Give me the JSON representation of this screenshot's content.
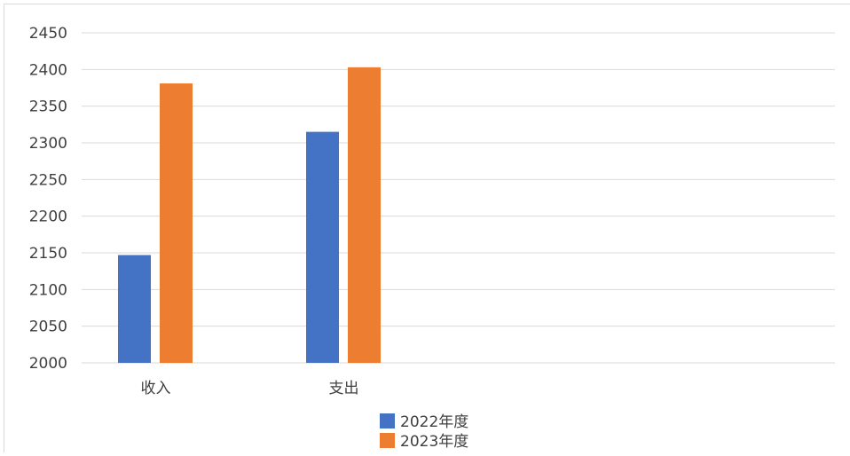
{
  "chart_data": {
    "type": "bar",
    "title": "",
    "xlabel": "",
    "ylabel": "",
    "categories": [
      "收入",
      "支出"
    ],
    "series": [
      {
        "name": "2022年度",
        "values": [
          2147,
          2315
        ],
        "color": "#4472c4"
      },
      {
        "name": "2023年度",
        "values": [
          2381,
          2403
        ],
        "color": "#ed7d31"
      }
    ],
    "ylim": [
      2000,
      2450
    ],
    "yticks": [
      "2000",
      "2050",
      "2100",
      "2150",
      "2200",
      "2250",
      "2300",
      "2350",
      "2400",
      "2450"
    ],
    "grid": true,
    "legend_position": "bottom",
    "gridline_color": "#d9d9d9",
    "text_color": "#404040"
  }
}
